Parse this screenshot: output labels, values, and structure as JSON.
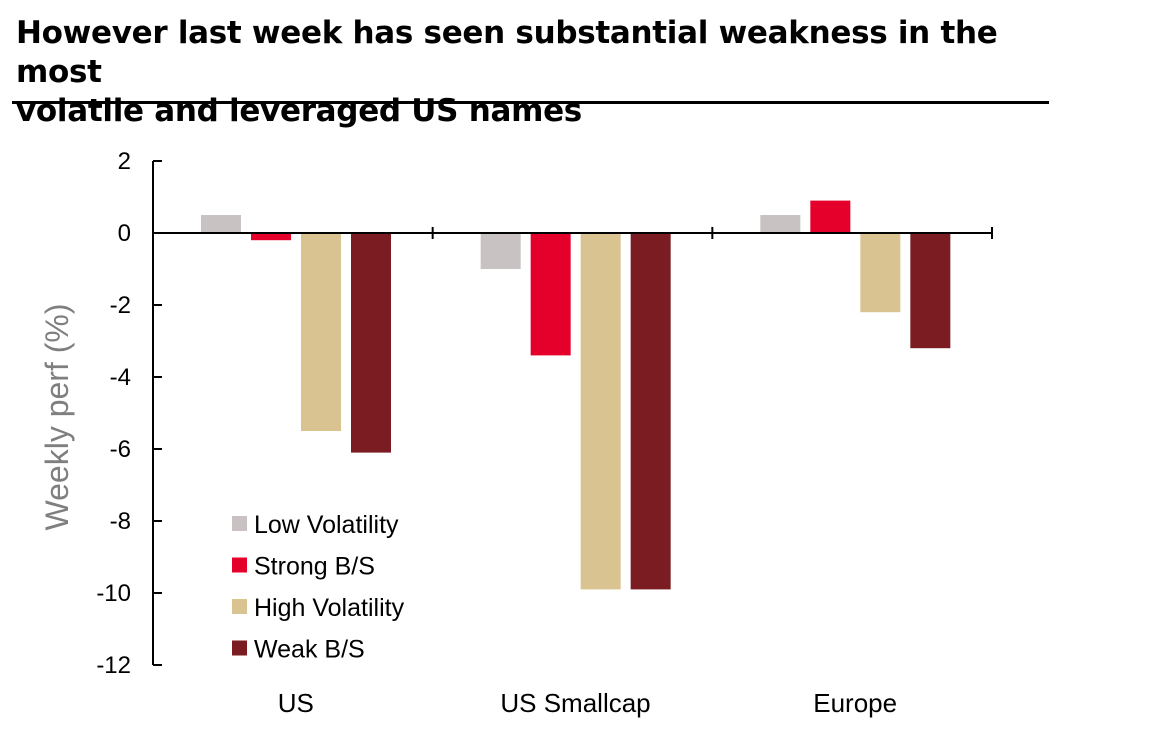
{
  "title_line1": "However last week has seen substantial weakness in the most",
  "title_line2": "volatile and leveraged US names",
  "chart_data": {
    "type": "bar",
    "title": "However last week has seen substantial weakness in the most volatile and leveraged US names",
    "xlabel": "",
    "ylabel": "Weekly perf (%)",
    "ylim": [
      -12,
      2
    ],
    "yticks": [
      2,
      0,
      -2,
      -4,
      -6,
      -8,
      -10,
      -12
    ],
    "categories": [
      "US",
      "US Smallcap",
      "Europe"
    ],
    "series": [
      {
        "name": "Low Volatility",
        "color": "#c9c2c2",
        "values": [
          0.5,
          -1.0,
          0.5
        ]
      },
      {
        "name": "Strong B/S",
        "color": "#e4002b",
        "values": [
          -0.2,
          -3.4,
          0.9
        ]
      },
      {
        "name": "High Volatility",
        "color": "#d9c491",
        "values": [
          -5.5,
          -9.9,
          -2.2
        ]
      },
      {
        "name": "Weak B/S",
        "color": "#7b1c22",
        "values": [
          -6.1,
          -9.9,
          -3.2
        ]
      }
    ],
    "legend_position": "bottom-left",
    "grid": false
  }
}
